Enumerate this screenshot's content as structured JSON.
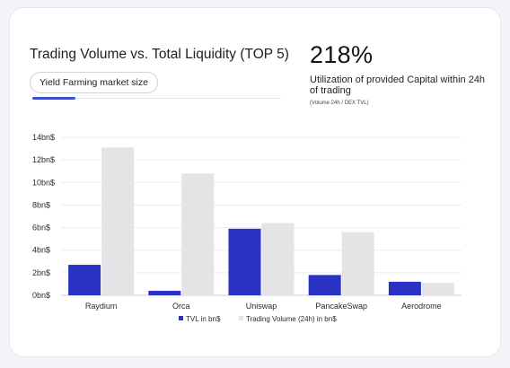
{
  "header": {
    "title": "Trading Volume vs. Total Liquidity (TOP 5)",
    "filter_pill": "Yield Farming market size"
  },
  "kpi": {
    "value": "218%",
    "description": "Utilization of provided Capital within 24h of trading",
    "note": "(Volume 24h / DEX TVL)"
  },
  "colors": {
    "tvl": "#2a32c4",
    "volume": "#e4e4e6",
    "accent": "#3b4fd8"
  },
  "chart_data": {
    "type": "bar",
    "categories": [
      "Raydium",
      "Orca",
      "Uniswap",
      "PancakeSwap",
      "Aerodrome"
    ],
    "series": [
      {
        "name": "TVL in bn$",
        "values": [
          2.7,
          0.4,
          5.9,
          1.8,
          1.2
        ]
      },
      {
        "name": "Trading Volume (24h) in bn$",
        "values": [
          13.1,
          10.8,
          6.4,
          5.6,
          1.1
        ]
      }
    ],
    "ylim": [
      0,
      14
    ],
    "yticks": [
      0,
      2,
      4,
      6,
      8,
      10,
      12,
      14
    ],
    "ytick_labels": [
      "0bn$",
      "2bn$",
      "4bn$",
      "6bn$",
      "8bn$",
      "10bn$",
      "12bn$",
      "14bn$"
    ],
    "xlabel": "",
    "ylabel": "",
    "grid": true,
    "legend_position": "bottom-center"
  }
}
